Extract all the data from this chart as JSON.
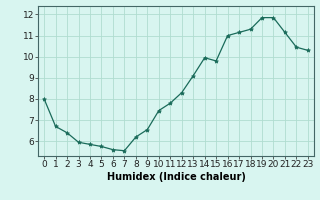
{
  "x": [
    0,
    1,
    2,
    3,
    4,
    5,
    6,
    7,
    8,
    9,
    10,
    11,
    12,
    13,
    14,
    15,
    16,
    17,
    18,
    19,
    20,
    21,
    22,
    23
  ],
  "y": [
    8.0,
    6.7,
    6.4,
    5.95,
    5.85,
    5.75,
    5.6,
    5.55,
    6.2,
    6.55,
    7.45,
    7.8,
    8.3,
    9.1,
    9.95,
    9.8,
    11.0,
    11.15,
    11.3,
    11.85,
    11.85,
    11.15,
    10.45,
    10.3
  ],
  "line_color": "#1a6b5a",
  "marker": "*",
  "marker_size": 3,
  "bg_color": "#d8f5f0",
  "grid_color": "#b0ddd0",
  "xlabel": "Humidex (Indice chaleur)",
  "xlim": [
    -0.5,
    23.5
  ],
  "ylim": [
    5.3,
    12.4
  ],
  "yticks": [
    6,
    7,
    8,
    9,
    10,
    11,
    12
  ],
  "xticks": [
    0,
    1,
    2,
    3,
    4,
    5,
    6,
    7,
    8,
    9,
    10,
    11,
    12,
    13,
    14,
    15,
    16,
    17,
    18,
    19,
    20,
    21,
    22,
    23
  ],
  "xlabel_fontsize": 7,
  "tick_fontsize": 6.5
}
